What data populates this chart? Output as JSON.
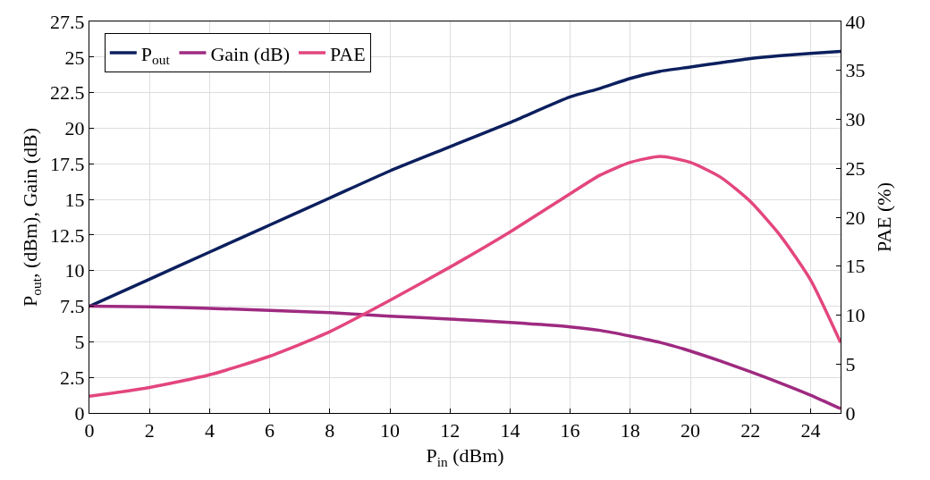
{
  "chart_data": {
    "type": "line",
    "xlabel": "P$_{in}$ (dBm)",
    "ylabel": "P$_{out}$, (dBm), Gain (dB)",
    "y2label": "PAE (%)",
    "x": [
      0,
      2,
      4,
      6,
      8,
      10,
      12,
      14,
      16,
      17,
      18,
      19,
      20,
      21,
      22,
      23,
      24,
      25
    ],
    "series": [
      {
        "name": "P$_{out}$",
        "color": "#0c1f5e",
        "values": [
          7.5,
          9.4,
          11.3,
          13.2,
          15.1,
          17.0,
          18.7,
          20.4,
          22.2,
          22.8,
          23.5,
          24.0,
          24.3,
          24.6,
          24.9,
          25.1,
          25.25,
          25.4
        ]
      },
      {
        "name": "Gain (dB)",
        "color": "#9e2a80",
        "values": [
          7.5,
          7.45,
          7.35,
          7.2,
          7.05,
          6.8,
          6.6,
          6.35,
          6.05,
          5.8,
          5.4,
          4.95,
          4.35,
          3.65,
          2.9,
          2.1,
          1.25,
          0.3
        ]
      },
      {
        "name": "PAE",
        "color": "#e3467e",
        "axis": "y2",
        "values": [
          1.7,
          2.6,
          3.9,
          5.8,
          8.3,
          11.5,
          14.9,
          18.5,
          22.4,
          24.3,
          25.6,
          26.2,
          25.6,
          24.1,
          21.6,
          18.1,
          13.6,
          7.2
        ]
      }
    ],
    "xlim": [
      0,
      25
    ],
    "xticks": [
      0,
      2,
      4,
      6,
      8,
      10,
      12,
      14,
      16,
      18,
      20,
      22,
      24
    ],
    "ylim": [
      0,
      27.5
    ],
    "yticks": [
      0,
      2.5,
      5,
      7.5,
      10,
      12.5,
      15,
      17.5,
      20,
      22.5,
      25,
      27.5
    ],
    "y2lim": [
      0,
      40
    ],
    "y2ticks": [
      0,
      5,
      10,
      15,
      20,
      25,
      30,
      35,
      40
    ],
    "grid": true,
    "legend": "top left",
    "marker": "none",
    "line_style": "solid"
  }
}
